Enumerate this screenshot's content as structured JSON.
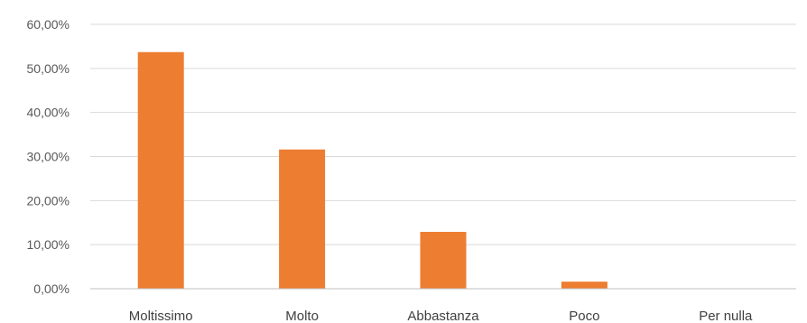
{
  "chart_data": {
    "type": "bar",
    "title": "",
    "xlabel": "",
    "ylabel": "",
    "categories": [
      "Moltissimo",
      "Molto",
      "Abbastanza",
      "Poco",
      "Per nulla"
    ],
    "values": [
      53.7,
      31.6,
      12.9,
      1.6,
      0.0
    ],
    "yticks": [
      "0,00%",
      "10,00%",
      "20,00%",
      "30,00%",
      "40,00%",
      "50,00%",
      "60,00%"
    ],
    "ylim": [
      0,
      60
    ],
    "grid": true,
    "legend": "none",
    "bar_color": "#ED7D31",
    "gridline_color": "#D9D9D9",
    "axis_line_color": "#BFBFBF"
  }
}
